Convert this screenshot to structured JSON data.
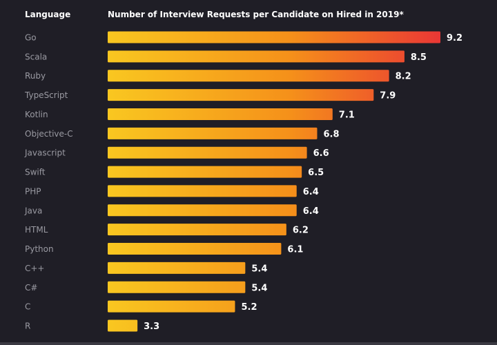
{
  "chart_data": {
    "type": "bar",
    "orientation": "horizontal",
    "category_header": "Language",
    "title": "Number of Interview Requests per Candidate on Hired in 2019*",
    "categories": [
      "Go",
      "Scala",
      "Ruby",
      "TypeScript",
      "Kotlin",
      "Objective-C",
      "Javascript",
      "Swift",
      "PHP",
      "Java",
      "HTML",
      "Python",
      "C++",
      "C#",
      "C",
      "R"
    ],
    "values": [
      9.2,
      8.5,
      8.2,
      7.9,
      7.1,
      6.8,
      6.6,
      6.5,
      6.4,
      6.4,
      6.2,
      6.1,
      5.4,
      5.4,
      5.2,
      3.3
    ],
    "value_labels": [
      "9.2",
      "8.5",
      "8.2",
      "7.9",
      "7.1",
      "6.8",
      "6.6",
      "6.5",
      "6.4",
      "6.4",
      "6.2",
      "6.1",
      "5.4",
      "5.4",
      "5.2",
      "3.3"
    ],
    "xlim": [
      2.72,
      9.2
    ],
    "grid": false,
    "legend": "none",
    "colors": {
      "background": "#1f1e26",
      "bar_start": "#f9c720",
      "bar_mid": "#f5901a",
      "bar_end": "#ea3735",
      "category_text": "#9a9aa2",
      "value_text": "#ffffff"
    }
  }
}
